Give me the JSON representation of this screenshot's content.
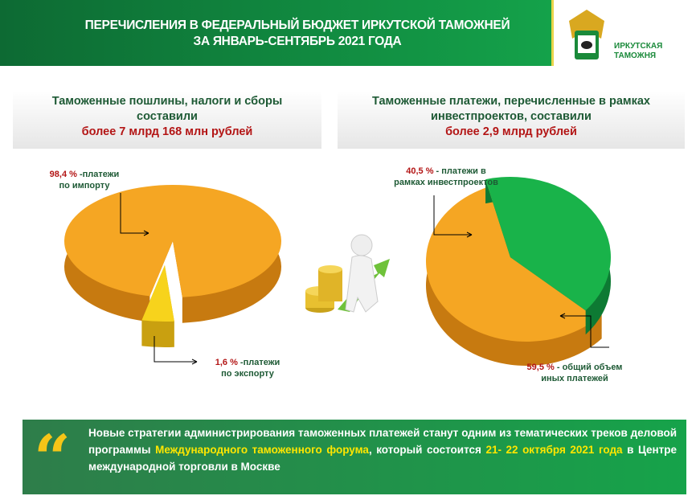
{
  "header": {
    "title_line1": "ПЕРЕЧИСЛЕНИЯ В ФЕДЕРАЛЬНЫЙ БЮДЖЕТ ИРКУТСКОЙ ТАМОЖНЕЙ",
    "title_line2": "ЗА ЯНВАРЬ-СЕНТЯБРЬ  2021 ГОДА",
    "logo_line1": "ИРКУТСКАЯ",
    "logo_line2": "ТАМОЖНЯ"
  },
  "left_box": {
    "line1": "Таможенные  пошлины,  налоги и сборы",
    "line2": "составили",
    "amount": "более 7 млрд  168 млн рублей"
  },
  "right_box": {
    "line1": "Таможенные платежи,  перечисленные  в рамках",
    "line2": "инвестпроектов, составили",
    "amount": "более 2,9  млрд рублей"
  },
  "labels": {
    "import_pct": "98,4 %",
    "import_text1": " -платежи",
    "import_text2": "по импорту",
    "export_pct": "1,6 %",
    "export_text1": " -платежи",
    "export_text2": "по экспорту",
    "invest_pct": "40,5 %",
    "invest_text1": " - платежи  в",
    "invest_text2": "рамках инвестпроектов",
    "other_pct": "59,5 %",
    "other_text1": " -  общий объем",
    "other_text2": "иных платежей"
  },
  "quote": {
    "p1": "Новые стратегии администрирования таможенных платежей станут одним из тематических треков деловой программы  ",
    "h1": "Международного таможенного форума",
    "p2": ", который состоится ",
    "h2": "21- 22 октября 2021 года",
    "p3": " в Центре международной торговли в Москве"
  },
  "colors": {
    "orange": "#f5a623",
    "yellow": "#f7d31c",
    "green": "#19b34a",
    "header_green": "#0d6a33"
  },
  "chart_data": [
    {
      "type": "pie",
      "title": "Таможенные пошлины, налоги и сборы",
      "categories": [
        "платежи по импорту",
        "платежи по экспорту"
      ],
      "values": [
        98.4,
        1.6
      ]
    },
    {
      "type": "pie",
      "title": "Таможенные платежи в рамках инвестпроектов",
      "categories": [
        "платежи в рамках инвестпроектов",
        "общий объем иных платежей"
      ],
      "values": [
        40.5,
        59.5
      ]
    }
  ]
}
